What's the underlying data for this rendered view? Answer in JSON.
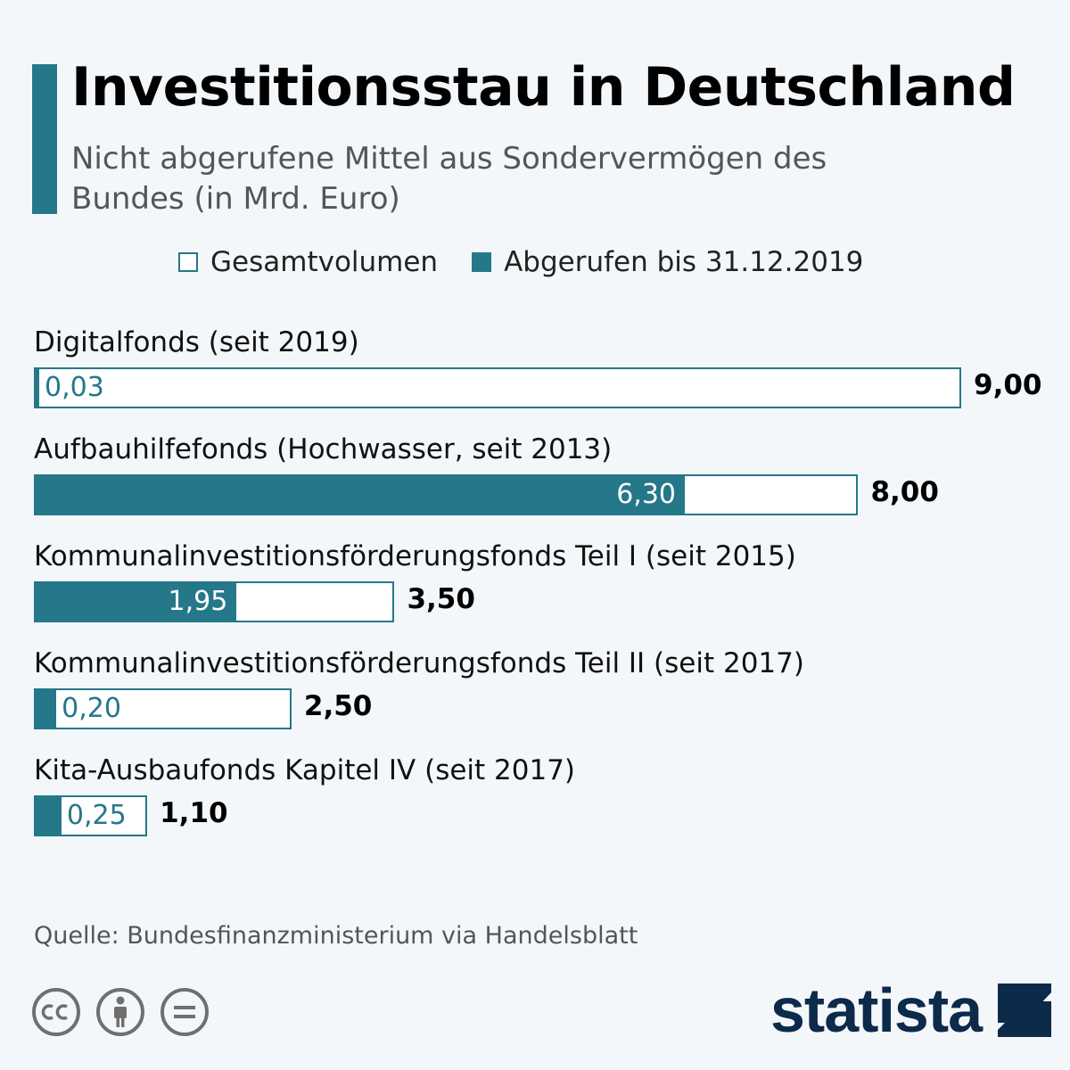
{
  "header": {
    "title": "Investitionsstau in Deutschland",
    "subtitle": "Nicht abgerufene Mittel aus Sondervermögen des Bundes (in Mrd. Euro)"
  },
  "legend": {
    "total": "Gesamtvolumen",
    "called": "Abgerufen bis 31.12.2019"
  },
  "colors": {
    "accent": "#24788a",
    "logo": "#0c2a4a"
  },
  "chart_data": {
    "type": "bar",
    "orientation": "horizontal",
    "title": "Investitionsstau in Deutschland",
    "subtitle": "Nicht abgerufene Mittel aus Sondervermögen des Bundes (in Mrd. Euro)",
    "categories": [
      "Digitalfonds (seit 2019)",
      "Aufbauhilfefonds (Hochwasser, seit 2013)",
      "Kommunalinvestitionsförderungsfonds Teil I (seit 2015)",
      "Kommunalinvestitionsförderungsfonds Teil II (seit 2017)",
      "Kita-Ausbaufonds Kapitel IV (seit 2017)"
    ],
    "series": [
      {
        "name": "Gesamtvolumen",
        "values": [
          9.0,
          8.0,
          3.5,
          2.5,
          1.1
        ],
        "labels": [
          "9,00",
          "8,00",
          "3,50",
          "2,50",
          "1,10"
        ]
      },
      {
        "name": "Abgerufen bis 31.12.2019",
        "values": [
          0.03,
          6.3,
          1.95,
          0.2,
          0.25
        ],
        "labels": [
          "0,03",
          "6,30",
          "1,95",
          "0,20",
          "0,25"
        ]
      }
    ],
    "xlim": [
      0,
      9
    ],
    "grid": false,
    "legend_position": "top"
  },
  "footer": {
    "source": "Quelle: Bundesfinanzministerium via Handelsblatt",
    "licence_icons": [
      "cc-icon",
      "attribution-icon",
      "no-derivatives-icon"
    ],
    "logo_text": "statista"
  }
}
